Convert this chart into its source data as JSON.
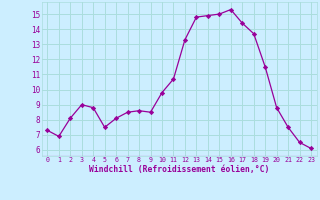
{
  "x": [
    0,
    1,
    2,
    3,
    4,
    5,
    6,
    7,
    8,
    9,
    10,
    11,
    12,
    13,
    14,
    15,
    16,
    17,
    18,
    19,
    20,
    21,
    22,
    23
  ],
  "y": [
    7.3,
    6.9,
    8.1,
    9.0,
    8.8,
    7.5,
    8.1,
    8.5,
    8.6,
    8.5,
    9.8,
    10.7,
    13.3,
    14.8,
    14.9,
    15.0,
    15.3,
    14.4,
    13.7,
    11.5,
    8.8,
    7.5,
    6.5,
    6.1
  ],
  "line_color": "#990099",
  "marker": "D",
  "marker_size": 2.2,
  "bg_color": "#cceeff",
  "grid_color": "#aadddd",
  "xlabel": "Windchill (Refroidissement éolien,°C)",
  "tick_color": "#990099",
  "yticks": [
    6,
    7,
    8,
    9,
    10,
    11,
    12,
    13,
    14,
    15
  ],
  "ylim": [
    5.6,
    15.8
  ],
  "xlim": [
    -0.5,
    23.5
  ]
}
